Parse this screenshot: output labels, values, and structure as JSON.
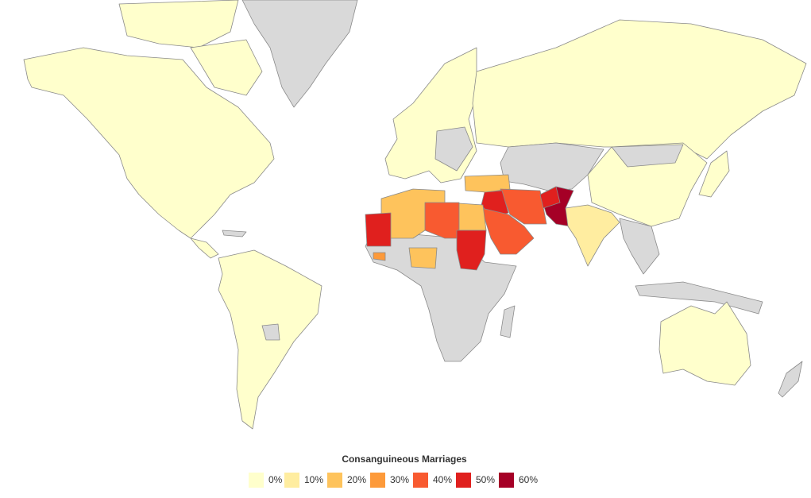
{
  "legend": {
    "title": "Consanguineous Marriages",
    "items": [
      {
        "label": "0%",
        "color": "#ffffcc"
      },
      {
        "label": "10%",
        "color": "#ffeda0"
      },
      {
        "label": "20%",
        "color": "#fec35c"
      },
      {
        "label": "30%",
        "color": "#fd9a3a"
      },
      {
        "label": "40%",
        "color": "#f85a30"
      },
      {
        "label": "50%",
        "color": "#e0201e"
      },
      {
        "label": "60%",
        "color": "#a50026"
      }
    ]
  }
}
